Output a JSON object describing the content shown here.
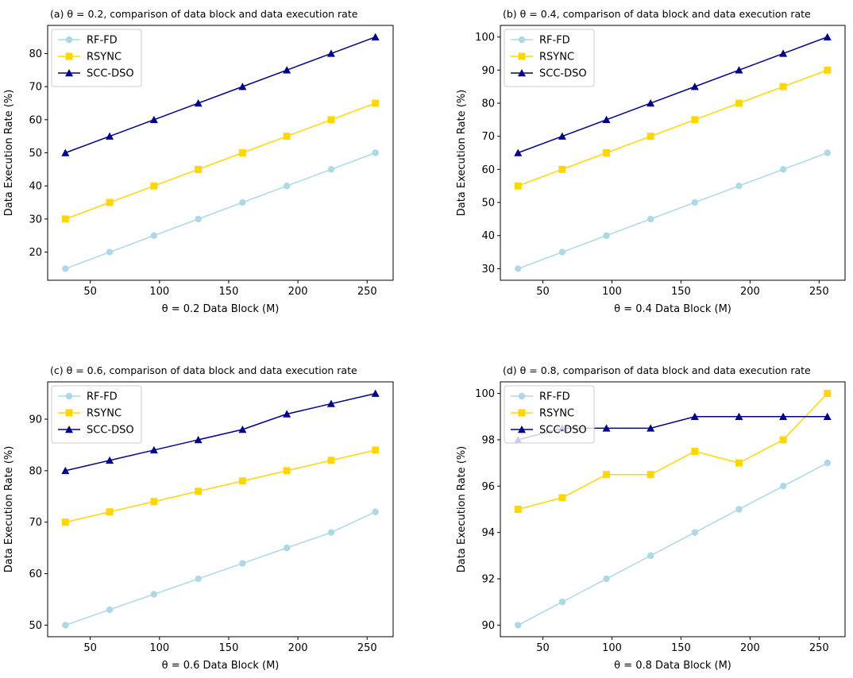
{
  "colors": {
    "RF-FD": "#add8e6",
    "RSYNC": "#ffd700",
    "SCC-DSO": "#00008b"
  },
  "chart_data": [
    {
      "type": "line",
      "title_prefix": "(a) ",
      "title_theta": "θ = 0.2",
      "title_suffix": ", comparison of data block and data execution rate",
      "xlabel": "θ = 0.2 Data Block (M)",
      "ylabel": "Data Execution Rate (%)",
      "x": [
        32,
        64,
        96,
        128,
        160,
        192,
        224,
        256
      ],
      "xlim": [
        19.2,
        268.8
      ],
      "ylim": [
        11.5,
        88.5
      ],
      "xticks": [
        50,
        100,
        150,
        200,
        250
      ],
      "yticks": [
        20,
        30,
        40,
        50,
        60,
        70,
        80
      ],
      "legend_position": "upper-left",
      "series": [
        {
          "name": "RF-FD",
          "marker": "circle",
          "values": [
            15,
            20,
            25,
            30,
            35,
            40,
            45,
            50
          ]
        },
        {
          "name": "RSYNC",
          "marker": "square",
          "values": [
            30,
            35,
            40,
            45,
            50,
            55,
            60,
            65
          ]
        },
        {
          "name": "SCC-DSO",
          "marker": "triangle",
          "values": [
            50,
            55,
            60,
            65,
            70,
            75,
            80,
            85
          ]
        }
      ]
    },
    {
      "type": "line",
      "title_prefix": "(b) ",
      "title_theta": "θ = 0.4",
      "title_suffix": ", comparison of data block and data execution rate",
      "xlabel": "θ = 0.4 Data Block (M)",
      "ylabel": "Data Execution Rate (%)",
      "x": [
        32,
        64,
        96,
        128,
        160,
        192,
        224,
        256
      ],
      "xlim": [
        19.2,
        268.8
      ],
      "ylim": [
        26.5,
        103.5
      ],
      "xticks": [
        50,
        100,
        150,
        200,
        250
      ],
      "yticks": [
        30,
        40,
        50,
        60,
        70,
        80,
        90,
        100
      ],
      "legend_position": "upper-left",
      "series": [
        {
          "name": "RF-FD",
          "marker": "circle",
          "values": [
            30,
            35,
            40,
            45,
            50,
            55,
            60,
            65
          ]
        },
        {
          "name": "RSYNC",
          "marker": "square",
          "values": [
            55,
            60,
            65,
            70,
            75,
            80,
            85,
            90
          ]
        },
        {
          "name": "SCC-DSO",
          "marker": "triangle",
          "values": [
            65,
            70,
            75,
            80,
            85,
            90,
            95,
            100
          ]
        }
      ]
    },
    {
      "type": "line",
      "title_prefix": "(c) ",
      "title_theta": "θ = 0.6",
      "title_suffix": ", comparison of data block and data execution rate",
      "xlabel": "θ = 0.6 Data Block (M)",
      "ylabel": "Data Execution Rate (%)",
      "x": [
        32,
        64,
        96,
        128,
        160,
        192,
        224,
        256
      ],
      "xlim": [
        19.2,
        268.8
      ],
      "ylim": [
        47.75,
        97.25
      ],
      "xticks": [
        50,
        100,
        150,
        200,
        250
      ],
      "yticks": [
        50,
        60,
        70,
        80,
        90
      ],
      "legend_position": "upper-left",
      "series": [
        {
          "name": "RF-FD",
          "marker": "circle",
          "values": [
            50,
            53,
            56,
            59,
            62,
            65,
            68,
            72
          ]
        },
        {
          "name": "RSYNC",
          "marker": "square",
          "values": [
            70,
            72,
            74,
            76,
            78,
            80,
            82,
            84
          ]
        },
        {
          "name": "SCC-DSO",
          "marker": "triangle",
          "values": [
            80,
            82,
            84,
            86,
            88,
            91,
            93,
            95
          ]
        }
      ]
    },
    {
      "type": "line",
      "title_prefix": "(d) ",
      "title_theta": "θ = 0.8",
      "title_suffix": ", comparison of data block and data execution rate",
      "xlabel": "θ = 0.8 Data Block (M)",
      "ylabel": "Data Execution Rate (%)",
      "x": [
        32,
        64,
        96,
        128,
        160,
        192,
        224,
        256
      ],
      "xlim": [
        19.2,
        268.8
      ],
      "ylim": [
        89.5,
        100.5
      ],
      "xticks": [
        50,
        100,
        150,
        200,
        250
      ],
      "yticks": [
        90,
        92,
        94,
        96,
        98,
        100
      ],
      "legend_position": "upper-left",
      "series": [
        {
          "name": "RF-FD",
          "marker": "circle",
          "values": [
            90,
            91,
            92,
            93,
            94,
            95,
            96,
            97
          ]
        },
        {
          "name": "RSYNC",
          "marker": "square",
          "values": [
            95,
            95.5,
            96.5,
            96.5,
            97.5,
            97,
            98,
            100
          ]
        },
        {
          "name": "SCC-DSO",
          "marker": "triangle",
          "values": [
            98,
            98.5,
            98.5,
            98.5,
            99,
            99,
            99,
            99
          ]
        }
      ]
    }
  ]
}
